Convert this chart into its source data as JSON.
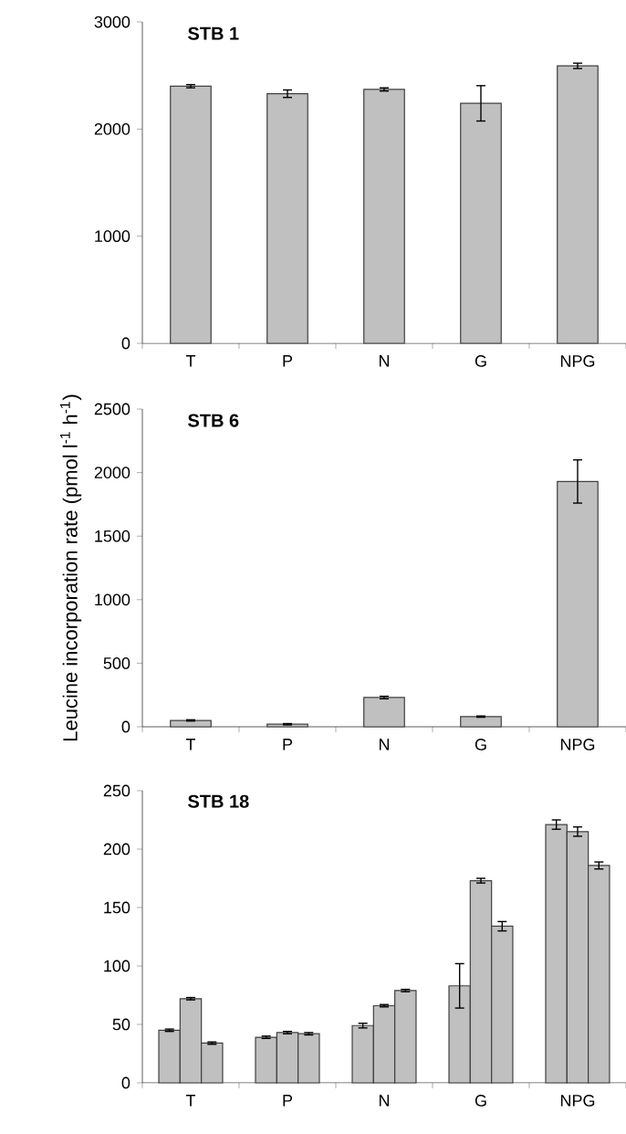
{
  "chart_data": [
    {
      "type": "bar",
      "title": "STB 1",
      "categories": [
        "T",
        "P",
        "N",
        "G",
        "NPG"
      ],
      "color": "#c0c0c0",
      "values": [
        2400,
        2330,
        2370,
        2240,
        2590
      ],
      "errors": [
        15,
        35,
        15,
        165,
        25
      ],
      "ylim": [
        0,
        3000
      ],
      "yticks": [
        0,
        1000,
        2000,
        3000
      ],
      "grid": false
    },
    {
      "type": "bar",
      "title": "STB 6",
      "ylabel": "Leucine incorporation rate (pmol l$^{-1}$ h$^{-1}$)",
      "categories": [
        "T",
        "P",
        "N",
        "G",
        "NPG"
      ],
      "color": "#c0c0c0",
      "values": [
        50,
        20,
        230,
        80,
        1930
      ],
      "errors": [
        5,
        5,
        10,
        5,
        170
      ],
      "ylim": [
        0,
        2500
      ],
      "yticks": [
        0,
        500,
        1000,
        1500,
        2000,
        2500
      ],
      "grid": false
    },
    {
      "type": "bar",
      "title": "STB 18",
      "categories": [
        "T",
        "P",
        "N",
        "G",
        "NPG"
      ],
      "series": [
        {
          "color": "#c0c0c0",
          "values": [
            45,
            39,
            49,
            83,
            221
          ],
          "errors": [
            1,
            1,
            2,
            19,
            4
          ]
        },
        {
          "color": "#c0c0c0",
          "values": [
            72,
            43,
            66,
            173,
            215
          ],
          "errors": [
            1,
            1,
            1,
            2,
            4
          ]
        },
        {
          "color": "#c0c0c0",
          "values": [
            34,
            42,
            79,
            134,
            186
          ],
          "errors": [
            1,
            1,
            1,
            4,
            3
          ]
        }
      ],
      "ylim": [
        0,
        250
      ],
      "yticks": [
        0,
        50,
        100,
        150,
        200,
        250
      ],
      "grid": false
    }
  ]
}
